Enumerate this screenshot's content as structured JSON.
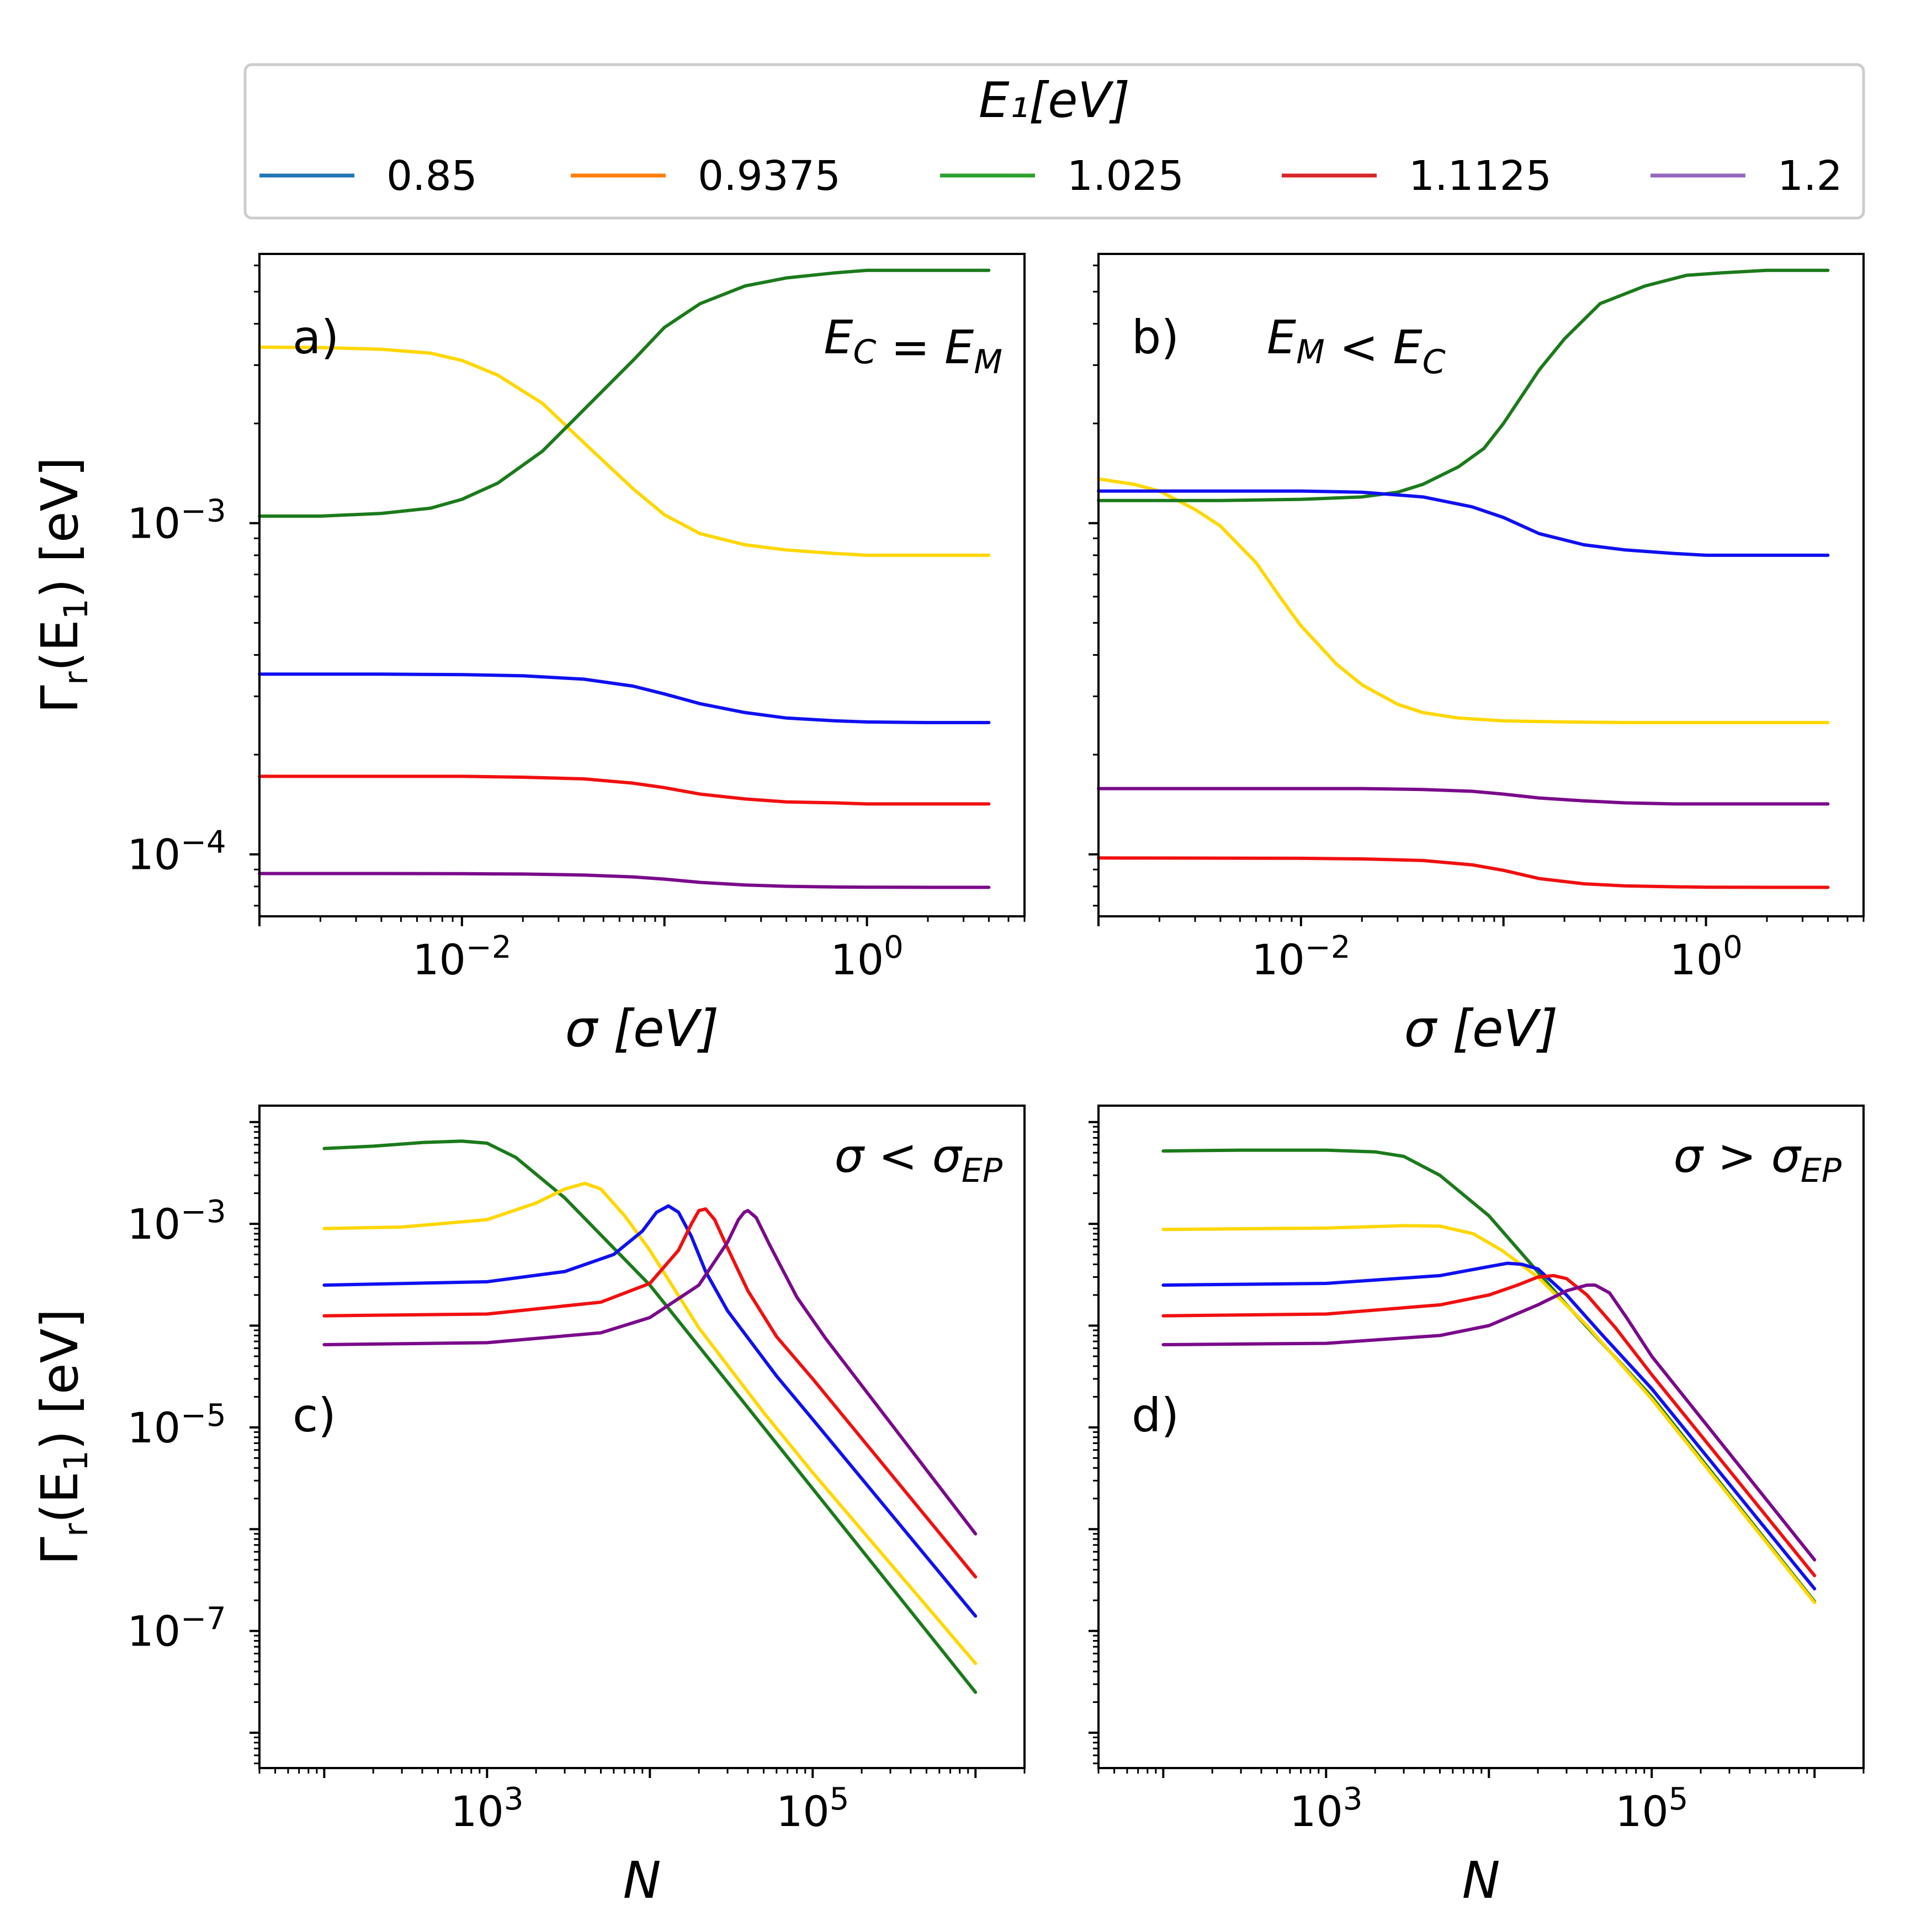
{
  "legend": {
    "title": "E₁[eV]",
    "entries": [
      {
        "label": "0.85",
        "color": "#1f77b4"
      },
      {
        "label": "0.9375",
        "color": "#ff7f0e"
      },
      {
        "label": "1.025",
        "color": "#2ca02c"
      },
      {
        "label": "1.1125",
        "color": "#d62728"
      },
      {
        "label": "1.2",
        "color": "#9467bd"
      }
    ]
  },
  "line_colors": {
    "yellow": "#FFD700",
    "green": "#1B7A1B",
    "blue": "#1010F0",
    "red": "#F01010",
    "purple": "#7A0A8A"
  },
  "chart_data": [
    {
      "type": "line",
      "panel": "a)",
      "condition": "E_C = E_M",
      "xlabel": "σ [eV]",
      "ylabel": "Γr(E1) [eV]",
      "xscale": "log",
      "yscale": "log",
      "xlim": [
        0.001,
        6
      ],
      "ylim": [
        6.5e-05,
        0.0065
      ],
      "xticks": [
        {
          "value": 0.01,
          "base": "10",
          "exp": "−2"
        },
        {
          "value": 1,
          "base": "10",
          "exp": "0"
        }
      ],
      "yticks": [
        {
          "value": 0.0001,
          "base": "10",
          "exp": "−4"
        },
        {
          "value": 0.001,
          "base": "10",
          "exp": "−3"
        }
      ],
      "series": [
        {
          "color": "#FFD700",
          "x": [
            0.001,
            0.002,
            0.004,
            0.007,
            0.01,
            0.015,
            0.025,
            0.04,
            0.07,
            0.1,
            0.15,
            0.25,
            0.4,
            0.7,
            1,
            2,
            4
          ],
          "y": [
            0.0034,
            0.00339,
            0.00335,
            0.00326,
            0.0031,
            0.0028,
            0.0023,
            0.00175,
            0.00127,
            0.00106,
            0.00093,
            0.00086,
            0.00083,
            0.00081,
            0.0008,
            0.0008,
            0.0008
          ]
        },
        {
          "color": "#1B7A1B",
          "x": [
            0.001,
            0.002,
            0.004,
            0.007,
            0.01,
            0.015,
            0.025,
            0.04,
            0.07,
            0.1,
            0.15,
            0.25,
            0.4,
            0.7,
            1,
            2,
            4
          ],
          "y": [
            0.00105,
            0.00105,
            0.00107,
            0.00111,
            0.00118,
            0.00132,
            0.00165,
            0.0022,
            0.0031,
            0.0039,
            0.0046,
            0.0052,
            0.0055,
            0.0057,
            0.0058,
            0.0058,
            0.0058
          ]
        },
        {
          "color": "#1010F0",
          "x": [
            0.001,
            0.004,
            0.01,
            0.02,
            0.04,
            0.07,
            0.1,
            0.15,
            0.25,
            0.4,
            0.7,
            1,
            2,
            4
          ],
          "y": [
            0.00035,
            0.00035,
            0.000349,
            0.000346,
            0.000338,
            0.000322,
            0.000305,
            0.000285,
            0.000268,
            0.000258,
            0.000253,
            0.000251,
            0.00025,
            0.00025
          ]
        },
        {
          "color": "#F01010",
          "x": [
            0.001,
            0.004,
            0.01,
            0.02,
            0.04,
            0.07,
            0.1,
            0.15,
            0.25,
            0.4,
            0.7,
            1,
            2,
            4
          ],
          "y": [
            0.000172,
            0.000172,
            0.000172,
            0.000171,
            0.000169,
            0.000164,
            0.000159,
            0.000152,
            0.000147,
            0.000144,
            0.000143,
            0.000142,
            0.000142,
            0.000142
          ]
        },
        {
          "color": "#7A0A8A",
          "x": [
            0.001,
            0.004,
            0.01,
            0.02,
            0.04,
            0.07,
            0.1,
            0.15,
            0.25,
            0.4,
            0.7,
            1,
            2,
            4
          ],
          "y": [
            8.75e-05,
            8.75e-05,
            8.74e-05,
            8.72e-05,
            8.66e-05,
            8.55e-05,
            8.42e-05,
            8.23e-05,
            8.08e-05,
            8.01e-05,
            7.97e-05,
            7.96e-05,
            7.95e-05,
            7.95e-05
          ]
        }
      ]
    },
    {
      "type": "line",
      "panel": "b)",
      "condition": "E_M < E_C",
      "xlabel": "σ [eV]",
      "ylabel": "",
      "xscale": "log",
      "yscale": "log",
      "xlim": [
        0.001,
        6
      ],
      "ylim": [
        6.5e-05,
        0.0065
      ],
      "xticks": [
        {
          "value": 0.01,
          "base": "10",
          "exp": "−2"
        },
        {
          "value": 1,
          "base": "10",
          "exp": "0"
        }
      ],
      "yticks": [],
      "series": [
        {
          "color": "#FFD700",
          "x": [
            0.001,
            0.0015,
            0.002,
            0.003,
            0.004,
            0.006,
            0.008,
            0.01,
            0.015,
            0.02,
            0.03,
            0.04,
            0.06,
            0.1,
            0.2,
            0.4,
            1,
            2,
            4
          ],
          "y": [
            0.00136,
            0.00131,
            0.00125,
            0.0011,
            0.00098,
            0.00076,
            0.00059,
            0.00049,
            0.000375,
            0.000325,
            0.000284,
            0.000268,
            0.000258,
            0.000253,
            0.000251,
            0.00025,
            0.00025,
            0.00025,
            0.00025
          ]
        },
        {
          "color": "#1B7A1B",
          "x": [
            0.001,
            0.004,
            0.01,
            0.02,
            0.03,
            0.04,
            0.06,
            0.08,
            0.1,
            0.15,
            0.2,
            0.3,
            0.5,
            0.8,
            1.2,
            2,
            4
          ],
          "y": [
            0.00117,
            0.00117,
            0.00118,
            0.0012,
            0.00124,
            0.00131,
            0.00148,
            0.00168,
            0.002,
            0.0029,
            0.0036,
            0.0046,
            0.0052,
            0.0056,
            0.0057,
            0.0058,
            0.0058
          ]
        },
        {
          "color": "#1010F0",
          "x": [
            0.001,
            0.004,
            0.01,
            0.02,
            0.04,
            0.07,
            0.1,
            0.15,
            0.25,
            0.4,
            0.7,
            1,
            2,
            4
          ],
          "y": [
            0.00125,
            0.00125,
            0.00125,
            0.00124,
            0.0012,
            0.00112,
            0.00104,
            0.00093,
            0.00086,
            0.00083,
            0.00081,
            0.0008,
            0.0008,
            0.0008
          ]
        },
        {
          "color": "#7A0A8A",
          "x": [
            0.001,
            0.004,
            0.01,
            0.02,
            0.04,
            0.07,
            0.1,
            0.15,
            0.25,
            0.4,
            0.7,
            1,
            2,
            4
          ],
          "y": [
            0.000158,
            0.000158,
            0.000158,
            0.000158,
            0.000157,
            0.000155,
            0.000152,
            0.000148,
            0.000145,
            0.000143,
            0.000142,
            0.000142,
            0.000142,
            0.000142
          ]
        },
        {
          "color": "#F01010",
          "x": [
            0.001,
            0.004,
            0.01,
            0.02,
            0.04,
            0.07,
            0.1,
            0.15,
            0.25,
            0.4,
            0.7,
            1,
            2,
            4
          ],
          "y": [
            9.75e-05,
            9.74e-05,
            9.73e-05,
            9.69e-05,
            9.58e-05,
            9.3e-05,
            8.95e-05,
            8.45e-05,
            8.15e-05,
            8.03e-05,
            7.98e-05,
            7.96e-05,
            7.95e-05,
            7.95e-05
          ]
        }
      ]
    },
    {
      "type": "line",
      "panel": "c)",
      "condition": "σ < σ_EP",
      "xlabel": "N",
      "ylabel": "Γr(E1) [eV]",
      "xscale": "log",
      "yscale": "log",
      "xlim": [
        40,
        2000000
      ],
      "ylim": [
        4.5e-09,
        0.0145
      ],
      "xticks": [
        {
          "value": 1000,
          "base": "10",
          "exp": "3"
        },
        {
          "value": 100000,
          "base": "10",
          "exp": "5"
        }
      ],
      "yticks": [
        {
          "value": 1e-07,
          "base": "10",
          "exp": "−7"
        },
        {
          "value": 1e-05,
          "base": "10",
          "exp": "−5"
        },
        {
          "value": 0.001,
          "base": "10",
          "exp": "−3"
        }
      ],
      "series": [
        {
          "color": "#1B7A1B",
          "x": [
            100,
            200,
            400,
            700,
            1000,
            1500,
            3000,
            10000,
            100000,
            1000000
          ],
          "y": [
            0.0055,
            0.0058,
            0.0063,
            0.0065,
            0.0062,
            0.0045,
            0.0018,
            0.00025,
            2.5e-06,
            2.5e-08
          ]
        },
        {
          "color": "#FFD700",
          "x": [
            100,
            300,
            1000,
            2000,
            3000,
            4000,
            5000,
            7000,
            10000,
            20000,
            50000,
            100000,
            1000000
          ],
          "y": [
            0.0009,
            0.00093,
            0.0011,
            0.0016,
            0.0022,
            0.0025,
            0.0022,
            0.0012,
            0.00055,
            9.5e-05,
            1.4e-05,
            3.6e-06,
            4.8e-08
          ]
        },
        {
          "color": "#1010F0",
          "x": [
            100,
            1000,
            3000,
            6000,
            9000,
            11000,
            13000,
            15000,
            18000,
            22000,
            30000,
            60000,
            100000,
            1000000
          ],
          "y": [
            0.00025,
            0.00027,
            0.00034,
            0.0005,
            0.00085,
            0.0013,
            0.0015,
            0.0013,
            0.00075,
            0.00034,
            0.00014,
            3.2e-05,
            1.2e-05,
            1.4e-07
          ]
        },
        {
          "color": "#F01010",
          "x": [
            100,
            1000,
            5000,
            10000,
            15000,
            18000,
            20000,
            22000,
            25000,
            30000,
            40000,
            60000,
            100000,
            1000000
          ],
          "y": [
            0.000125,
            0.00013,
            0.00017,
            0.00026,
            0.00055,
            0.001,
            0.00135,
            0.0014,
            0.0011,
            0.00058,
            0.00022,
            7.8e-05,
            3e-05,
            3.4e-07
          ]
        },
        {
          "color": "#7A0A8A",
          "x": [
            100,
            1000,
            5000,
            10000,
            20000,
            30000,
            35000,
            38000,
            40000,
            45000,
            55000,
            80000,
            120000,
            1000000
          ],
          "y": [
            6.5e-05,
            6.8e-05,
            8.5e-05,
            0.00012,
            0.00025,
            0.00066,
            0.0011,
            0.0013,
            0.00135,
            0.00115,
            0.0006,
            0.00019,
            7.5e-05,
            9e-07
          ]
        }
      ]
    },
    {
      "type": "line",
      "panel": "d)",
      "condition": "σ > σ_EP",
      "xlabel": "N",
      "ylabel": "",
      "xscale": "log",
      "yscale": "log",
      "xlim": [
        40,
        2000000
      ],
      "ylim": [
        4.5e-09,
        0.0145
      ],
      "xticks": [
        {
          "value": 1000,
          "base": "10",
          "exp": "3"
        },
        {
          "value": 100000,
          "base": "10",
          "exp": "5"
        }
      ],
      "yticks": [],
      "series": [
        {
          "color": "#1B7A1B",
          "x": [
            100,
            300,
            1000,
            2000,
            3000,
            5000,
            10000,
            30000,
            100000,
            1000000
          ],
          "y": [
            0.0052,
            0.0053,
            0.0053,
            0.0051,
            0.0046,
            0.003,
            0.0012,
            0.00016,
            2e-05,
            1.95e-07
          ]
        },
        {
          "color": "#FFD700",
          "x": [
            100,
            1000,
            3000,
            5000,
            8000,
            12000,
            20000,
            40000,
            100000,
            1000000
          ],
          "y": [
            0.00088,
            0.00091,
            0.00096,
            0.00095,
            0.0008,
            0.00055,
            0.0003,
            0.0001,
            1.9e-05,
            1.9e-07
          ]
        },
        {
          "color": "#1010F0",
          "x": [
            100,
            1000,
            5000,
            10000,
            13000,
            16000,
            20000,
            30000,
            50000,
            100000,
            1000000
          ],
          "y": [
            0.00025,
            0.00026,
            0.00031,
            0.00038,
            0.00041,
            0.0004,
            0.00036,
            0.0002,
            8e-05,
            2.4e-05,
            2.6e-07
          ]
        },
        {
          "color": "#F01010",
          "x": [
            100,
            1000,
            5000,
            10000,
            15000,
            20000,
            25000,
            30000,
            40000,
            60000,
            100000,
            1000000
          ],
          "y": [
            0.000125,
            0.00013,
            0.00016,
            0.0002,
            0.00025,
            0.0003,
            0.00031,
            0.00029,
            0.0002,
            9.5e-05,
            3.3e-05,
            3.5e-07
          ]
        },
        {
          "color": "#7A0A8A",
          "x": [
            100,
            1000,
            5000,
            10000,
            20000,
            30000,
            40000,
            45000,
            55000,
            70000,
            100000,
            1000000
          ],
          "y": [
            6.5e-05,
            6.7e-05,
            8e-05,
            0.0001,
            0.00016,
            0.00022,
            0.00025,
            0.00025,
            0.00021,
            0.00012,
            5e-05,
            5e-07
          ]
        }
      ]
    }
  ]
}
